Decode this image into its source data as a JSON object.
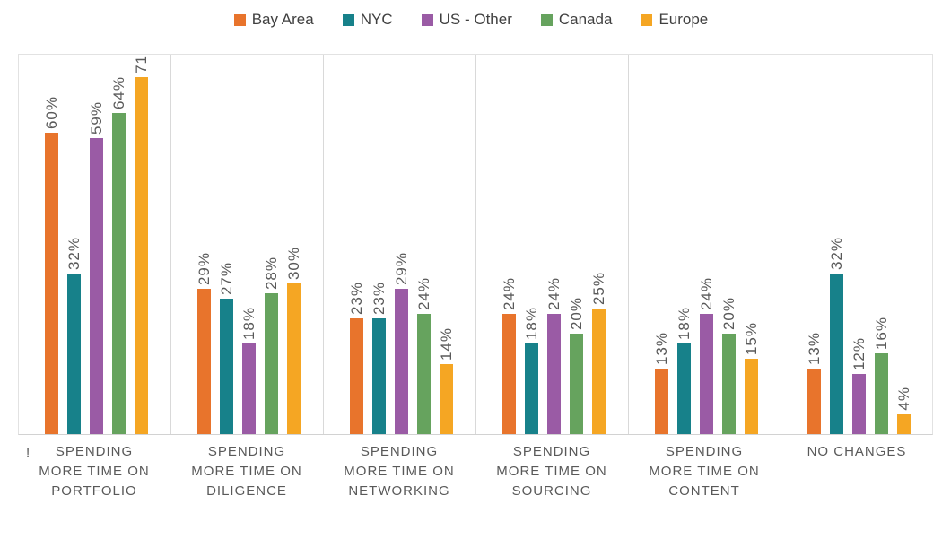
{
  "legend": {
    "items": [
      {
        "label": "Bay Area",
        "color": "#E8742C"
      },
      {
        "label": "NYC",
        "color": "#17818A"
      },
      {
        "label": "US - Other",
        "color": "#9A5BA5"
      },
      {
        "label": "Canada",
        "color": "#66A35E"
      },
      {
        "label": "Europe",
        "color": "#F5A623"
      }
    ]
  },
  "chart_data": {
    "type": "bar",
    "title": "",
    "xlabel": "",
    "ylabel": "",
    "ylim": [
      0,
      75
    ],
    "grid": "vertical category separators only",
    "legend_position": "top",
    "value_labels": "rotated 90deg above each bar",
    "categories": [
      "SPENDING MORE TIME ON PORTFOLIO",
      "SPENDING MORE TIME ON DILIGENCE",
      "SPENDING MORE TIME ON NETWORKING",
      "SPENDING MORE TIME ON SOURCING",
      "SPENDING MORE TIME ON CONTENT",
      "NO CHANGES"
    ],
    "category_lines": [
      [
        "SPENDING",
        "MORE TIME ON",
        "PORTFOLIO"
      ],
      [
        "SPENDING",
        "MORE TIME ON",
        "DILIGENCE"
      ],
      [
        "SPENDING",
        "MORE TIME ON",
        "NETWORKING"
      ],
      [
        "SPENDING",
        "MORE TIME ON",
        "SOURCING"
      ],
      [
        "SPENDING",
        "MORE TIME ON",
        "CONTENT"
      ],
      [
        "NO CHANGES"
      ]
    ],
    "series": [
      {
        "name": "Bay Area",
        "color": "#E8742C",
        "values": [
          60,
          29,
          23,
          24,
          13,
          13
        ],
        "labels": [
          "60%",
          "29%",
          "23%",
          "24%",
          "13%",
          "13%"
        ]
      },
      {
        "name": "NYC",
        "color": "#17818A",
        "values": [
          32,
          27,
          23,
          18,
          18,
          32
        ],
        "labels": [
          "32%",
          "27%",
          "23%",
          "18%",
          "18%",
          "32%"
        ]
      },
      {
        "name": "US - Other",
        "color": "#9A5BA5",
        "values": [
          59,
          18,
          29,
          24,
          24,
          12
        ],
        "labels": [
          "59%",
          "18%",
          "29%",
          "24%",
          "24%",
          "12%"
        ]
      },
      {
        "name": "Canada",
        "color": "#66A35E",
        "values": [
          64,
          28,
          24,
          20,
          20,
          16
        ],
        "labels": [
          "64%",
          "28%",
          "24%",
          "20%",
          "20%",
          "16%"
        ]
      },
      {
        "name": "Europe",
        "color": "#F5A623",
        "values": [
          71,
          30,
          14,
          25,
          15,
          4
        ],
        "labels": [
          "71",
          "30%",
          "14%",
          "25%",
          "15%",
          "4%"
        ]
      }
    ]
  },
  "artifacts": {
    "clipped_label_fragment": "!"
  },
  "colors": {
    "text": "#595959",
    "legend_text": "#404040",
    "gridline": "#D9D9D9",
    "background": "#FFFFFF"
  }
}
